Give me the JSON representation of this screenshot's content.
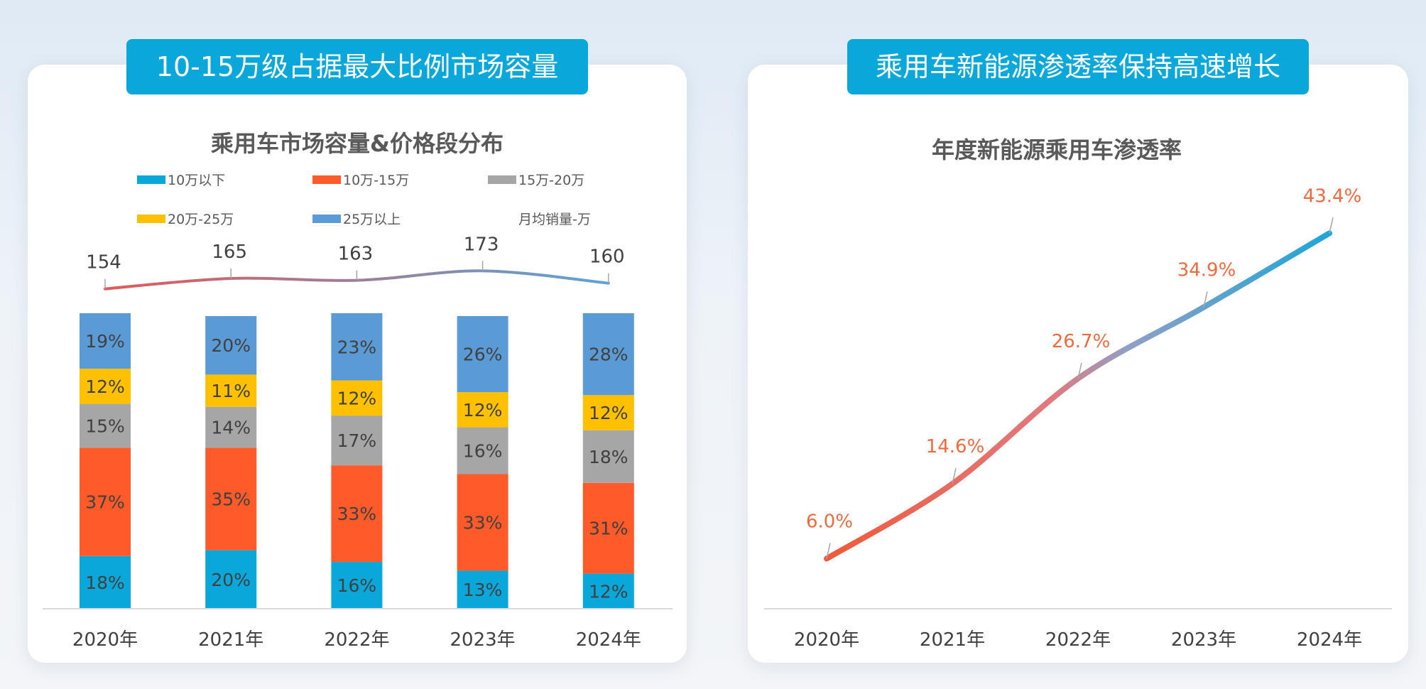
{
  "left_panel": {
    "banner": "10-15万级占据最大比例市场容量"
  },
  "right_panel": {
    "banner": "乘用车新能源渗透率保持高速增长"
  },
  "chart_data": [
    {
      "type": "bar",
      "stacked": true,
      "title": "乘用车市场容量&价格段分布",
      "categories": [
        "2020年",
        "2021年",
        "2022年",
        "2023年",
        "2024年"
      ],
      "unit": "%",
      "series": [
        {
          "name": "10万以下",
          "color": "#0aa8da",
          "values": [
            18,
            20,
            16,
            13,
            12
          ],
          "labels": [
            "18%",
            "20%",
            "16%",
            "13%",
            "12%"
          ]
        },
        {
          "name": "10万-15万",
          "color": "#ff5a2a",
          "values": [
            37,
            35,
            33,
            33,
            31
          ],
          "labels": [
            "37%",
            "35%",
            "33%",
            "33%",
            "31%"
          ]
        },
        {
          "name": "15万-20万",
          "color": "#a6a6a6",
          "values": [
            15,
            14,
            17,
            16,
            18
          ],
          "labels": [
            "15%",
            "14%",
            "17%",
            "16%",
            "18%"
          ]
        },
        {
          "name": "20万-25万",
          "color": "#ffc000",
          "values": [
            12,
            11,
            12,
            12,
            12
          ],
          "labels": [
            "12%",
            "11%",
            "12%",
            "12%",
            "12%"
          ]
        },
        {
          "name": "25万以上",
          "color": "#5b9bd5",
          "values": [
            19,
            20,
            23,
            26,
            28
          ],
          "labels": [
            "19%",
            "20%",
            "23%",
            "26%",
            "28%"
          ]
        }
      ],
      "line_series": {
        "name": "月均销量-万",
        "values": [
          154,
          165,
          163,
          173,
          160
        ],
        "labels": [
          "154",
          "165",
          "163",
          "173",
          "160"
        ],
        "color_start": "#e05a5a",
        "color_end": "#5ba4d6"
      },
      "legend_position": "top",
      "grid": false
    },
    {
      "type": "line",
      "title": "年度新能源乘用车渗透率",
      "categories": [
        "2020年",
        "2021年",
        "2022年",
        "2023年",
        "2024年"
      ],
      "series": [
        {
          "values": [
            6.0,
            14.6,
            26.7,
            34.9,
            43.4
          ],
          "labels": [
            "6.0%",
            "14.6%",
            "26.7%",
            "34.9%",
            "43.4%"
          ]
        }
      ],
      "label_color": "#f06a3f",
      "color_start": "#f05a3a",
      "color_end": "#1ea6d8",
      "grid": false
    }
  ]
}
